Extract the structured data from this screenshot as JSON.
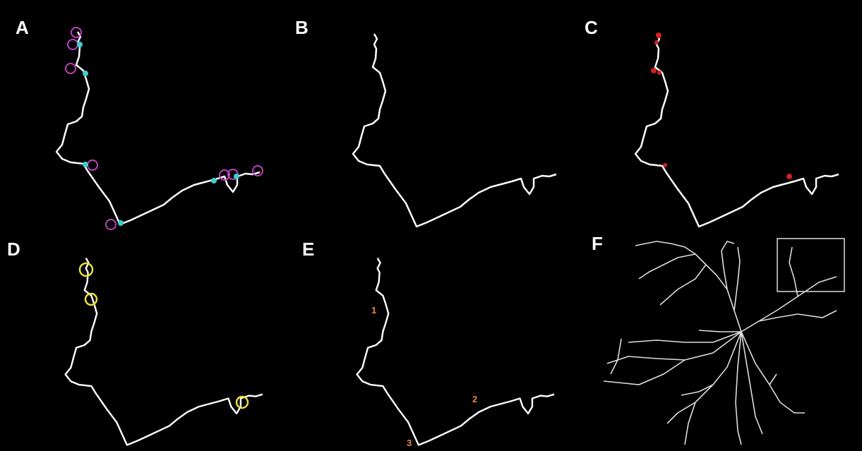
{
  "panels": [
    {
      "label": "A"
    },
    {
      "label": "B"
    },
    {
      "label": "C"
    },
    {
      "label": "D"
    },
    {
      "label": "E"
    },
    {
      "label": "F"
    }
  ],
  "annotations": [
    {
      "text": "1"
    },
    {
      "text": "2"
    },
    {
      "text": "3"
    }
  ]
}
